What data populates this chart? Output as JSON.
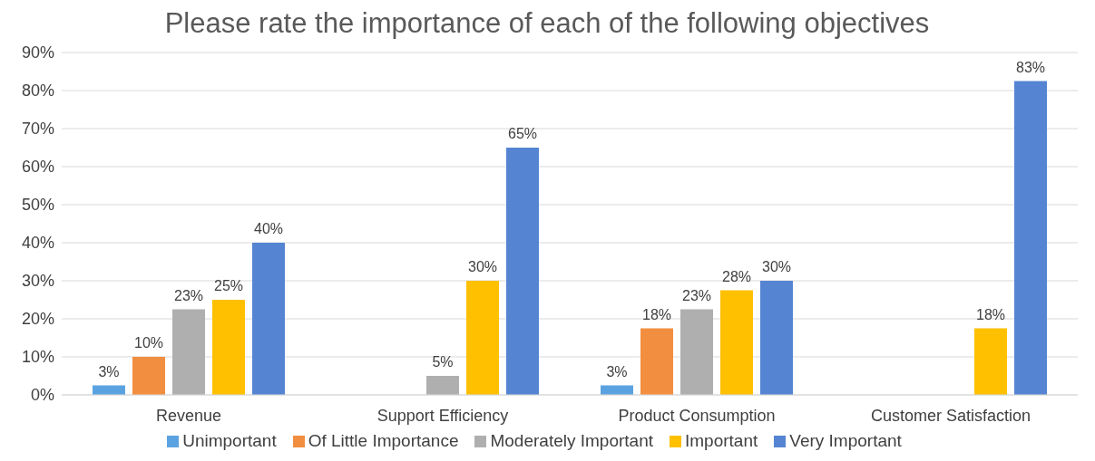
{
  "chart_data": {
    "type": "bar",
    "title": "Please rate the importance of each of the following objectives",
    "categories": [
      "Revenue",
      "Support Efficiency",
      "Product Consumption",
      "Customer Satisfaction"
    ],
    "series": [
      {
        "name": "Unimportant",
        "color": "#5ba3e0",
        "values": [
          2.5,
          null,
          2.5,
          null
        ],
        "value_labels": [
          "3%",
          null,
          "3%",
          null
        ]
      },
      {
        "name": "Of Little Importance",
        "color": "#f28e3f",
        "values": [
          10,
          null,
          17.5,
          null
        ],
        "value_labels": [
          "10%",
          null,
          "18%",
          null
        ]
      },
      {
        "name": "Moderately Important",
        "color": "#afafaf",
        "values": [
          22.5,
          5,
          22.5,
          null
        ],
        "value_labels": [
          "23%",
          "5%",
          "23%",
          null
        ]
      },
      {
        "name": "Important",
        "color": "#ffc000",
        "values": [
          25,
          30,
          27.5,
          17.5
        ],
        "value_labels": [
          "25%",
          "30%",
          "28%",
          "18%"
        ]
      },
      {
        "name": "Very Important",
        "color": "#5585d2",
        "values": [
          40,
          65,
          30,
          82.5
        ],
        "value_labels": [
          "40%",
          "65%",
          "30%",
          "83%"
        ]
      }
    ],
    "ylim": [
      0,
      90
    ],
    "yticks": [
      {
        "value": 0,
        "label": "0%"
      },
      {
        "value": 10,
        "label": "10%"
      },
      {
        "value": 20,
        "label": "20%"
      },
      {
        "value": 30,
        "label": "30%"
      },
      {
        "value": 40,
        "label": "40%"
      },
      {
        "value": 50,
        "label": "50%"
      },
      {
        "value": 60,
        "label": "60%"
      },
      {
        "value": 70,
        "label": "70%"
      },
      {
        "value": 80,
        "label": "80%"
      },
      {
        "value": 90,
        "label": "90%"
      }
    ],
    "grid": "y",
    "legend": "bottom"
  }
}
